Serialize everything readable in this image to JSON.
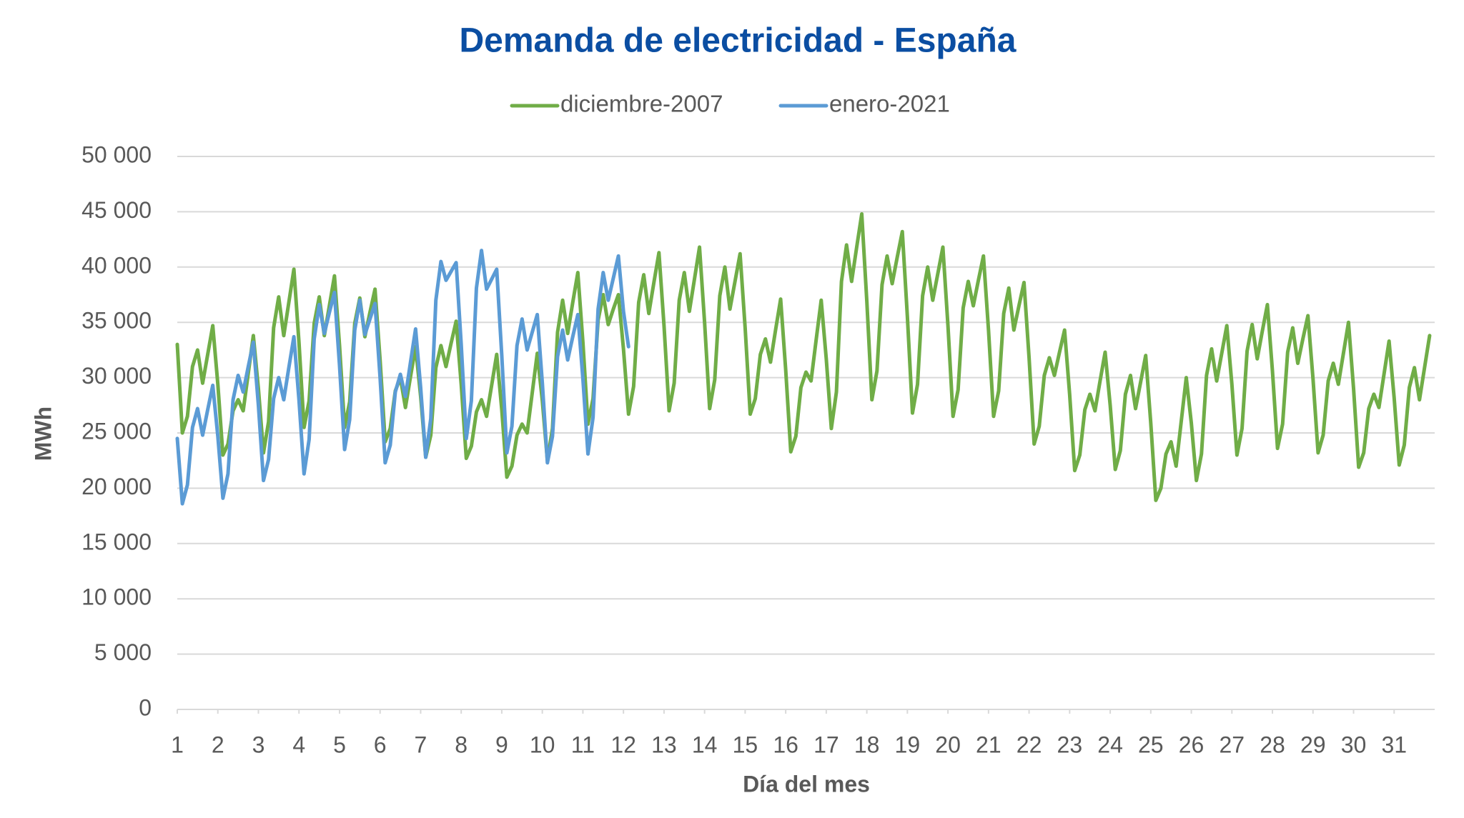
{
  "chart_data": {
    "type": "line",
    "title": "Demanda de electricidad - España",
    "x_label": "Día del mes",
    "y_label": "MWh",
    "xlim": [
      1,
      32
    ],
    "xticks": [
      1,
      2,
      3,
      4,
      5,
      6,
      7,
      8,
      9,
      10,
      11,
      12,
      13,
      14,
      15,
      16,
      17,
      18,
      19,
      20,
      21,
      22,
      23,
      24,
      25,
      26,
      27,
      28,
      29,
      30,
      31
    ],
    "ylim": [
      0,
      50000
    ],
    "yticks": [
      0,
      {
        "value": 5000,
        "label": "5 000"
      },
      {
        "value": 10000,
        "label": "10 000"
      },
      {
        "value": 15000,
        "label": "15 000"
      },
      {
        "value": 20000,
        "label": "20 000"
      },
      {
        "value": 25000,
        "label": "25 000"
      },
      {
        "value": 30000,
        "label": "30 000"
      },
      {
        "value": 35000,
        "label": "35 000"
      },
      {
        "value": 40000,
        "label": "40 000"
      },
      {
        "value": 45000,
        "label": "45 000"
      },
      {
        "value": 50000,
        "label": "50 000"
      }
    ],
    "grid": true,
    "legend": "top",
    "x": [
      1,
      1.125,
      1.25,
      1.375,
      1.5,
      1.625,
      1.75,
      1.875,
      2,
      2.125,
      2.25,
      2.375,
      2.5,
      2.625,
      2.75,
      2.875,
      3,
      3.125,
      3.25,
      3.375,
      3.5,
      3.625,
      3.75,
      3.875,
      4,
      4.125,
      4.25,
      4.375,
      4.5,
      4.625,
      4.75,
      4.875,
      5,
      5.125,
      5.25,
      5.375,
      5.5,
      5.625,
      5.75,
      5.875,
      6,
      6.125,
      6.25,
      6.375,
      6.5,
      6.625,
      6.75,
      6.875,
      7,
      7.125,
      7.25,
      7.375,
      7.5,
      7.625,
      7.75,
      7.875,
      8,
      8.125,
      8.25,
      8.375,
      8.5,
      8.625,
      8.75,
      8.875,
      9,
      9.125,
      9.25,
      9.375,
      9.5,
      9.625,
      9.75,
      9.875,
      10,
      10.125,
      10.25,
      10.375,
      10.5,
      10.625,
      10.75,
      10.875,
      11,
      11.125,
      11.25,
      11.375,
      11.5,
      11.625,
      11.75,
      11.875,
      12,
      12.125,
      12.25,
      12.375,
      12.5,
      12.625,
      12.75,
      12.875,
      13,
      13.125,
      13.25,
      13.375,
      13.5,
      13.625,
      13.75,
      13.875,
      14,
      14.125,
      14.25,
      14.375,
      14.5,
      14.625,
      14.75,
      14.875,
      15,
      15.125,
      15.25,
      15.375,
      15.5,
      15.625,
      15.75,
      15.875,
      16,
      16.125,
      16.25,
      16.375,
      16.5,
      16.625,
      16.75,
      16.875,
      17,
      17.125,
      17.25,
      17.375,
      17.5,
      17.625,
      17.75,
      17.875,
      18,
      18.125,
      18.25,
      18.375,
      18.5,
      18.625,
      18.75,
      18.875,
      19,
      19.125,
      19.25,
      19.375,
      19.5,
      19.625,
      19.75,
      19.875,
      20,
      20.125,
      20.25,
      20.375,
      20.5,
      20.625,
      20.75,
      20.875,
      21,
      21.125,
      21.25,
      21.375,
      21.5,
      21.625,
      21.75,
      21.875,
      22,
      22.125,
      22.25,
      22.375,
      22.5,
      22.625,
      22.75,
      22.875,
      23,
      23.125,
      23.25,
      23.375,
      23.5,
      23.625,
      23.75,
      23.875,
      24,
      24.125,
      24.25,
      24.375,
      24.5,
      24.625,
      24.75,
      24.875,
      25,
      25.125,
      25.25,
      25.375,
      25.5,
      25.625,
      25.75,
      25.875,
      26,
      26.125,
      26.25,
      26.375,
      26.5,
      26.625,
      26.75,
      26.875,
      27,
      27.125,
      27.25,
      27.375,
      27.5,
      27.625,
      27.75,
      27.875,
      28,
      28.125,
      28.25,
      28.375,
      28.5,
      28.625,
      28.75,
      28.875,
      29,
      29.125,
      29.25,
      29.375,
      29.5,
      29.625,
      29.75,
      29.875,
      30,
      30.125,
      30.25,
      30.375,
      30.5,
      30.625,
      30.75,
      30.875,
      31,
      31.125,
      31.25,
      31.375,
      31.5,
      31.625,
      31.75,
      31.875
    ],
    "series": [
      {
        "name": "diciembre-2007",
        "color": "#70ad47",
        "values": [
          33000,
          25000,
          26500,
          31000,
          32500,
          29500,
          32100,
          34700,
          29400,
          23000,
          24000,
          27000,
          28000,
          27000,
          30400,
          33800,
          29000,
          23200,
          26000,
          34500,
          37300,
          33800,
          36800,
          39800,
          33200,
          25500,
          27900,
          34900,
          37300,
          33800,
          36500,
          39200,
          32900,
          25500,
          27800,
          34900,
          37200,
          33700,
          35900,
          38000,
          31600,
          24200,
          25400,
          28800,
          30000,
          27300,
          30100,
          32800,
          28300,
          22800,
          24800,
          30900,
          32900,
          31000,
          33100,
          35100,
          29400,
          22700,
          23800,
          26900,
          28000,
          26500,
          29300,
          32100,
          27100,
          21000,
          22000,
          24800,
          25800,
          25000,
          28600,
          32200,
          27900,
          22500,
          25400,
          34100,
          37000,
          34000,
          36800,
          39500,
          33200,
          25800,
          28100,
          35200,
          37500,
          34800,
          36200,
          37500,
          32600,
          26700,
          29200,
          36800,
          39300,
          35800,
          38600,
          41300,
          34700,
          27000,
          29500,
          37000,
          39500,
          36000,
          38900,
          41800,
          35000,
          27200,
          29800,
          37400,
          40000,
          36200,
          38700,
          41200,
          34500,
          26700,
          28100,
          32100,
          33500,
          31400,
          34300,
          37100,
          30700,
          23300,
          24700,
          29100,
          30500,
          29700,
          33400,
          37000,
          31700,
          25400,
          28700,
          38700,
          42000,
          38700,
          41800,
          44800,
          36900,
          28000,
          30600,
          38400,
          41000,
          38500,
          40900,
          43200,
          35500,
          26800,
          29400,
          37400,
          40000,
          37000,
          39400,
          41800,
          34700,
          26500,
          28900,
          36300,
          38700,
          36500,
          38800,
          41000,
          34300,
          26500,
          28800,
          35800,
          38100,
          34300,
          36500,
          38600,
          31800,
          24000,
          25600,
          30200,
          31800,
          30200,
          32300,
          34300,
          28500,
          21600,
          23000,
          27100,
          28500,
          27000,
          29700,
          32300,
          27500,
          21700,
          23400,
          28500,
          30200,
          27200,
          29600,
          32000,
          25900,
          18900,
          20000,
          23100,
          24200,
          22000,
          26000,
          30000,
          25900,
          20700,
          23100,
          30200,
          32600,
          29700,
          32200,
          34700,
          29400,
          23000,
          25400,
          32400,
          34800,
          31700,
          34200,
          36600,
          30600,
          23600,
          25800,
          32300,
          34500,
          31300,
          33500,
          35600,
          29900,
          23200,
          24800,
          29700,
          31300,
          29400,
          32200,
          35000,
          29000,
          21900,
          23200,
          27200,
          28500,
          27300,
          30300,
          33300,
          28200,
          22100,
          23900,
          29100,
          30900,
          28000,
          30900,
          33800
        ]
      },
      {
        "name": "enero-2021",
        "color": "#5b9bd5",
        "values": [
          24500,
          18600,
          20300,
          25500,
          27200,
          24800,
          27100,
          29300,
          24700,
          19100,
          21300,
          28000,
          30200,
          28700,
          31000,
          33200,
          27500,
          20700,
          22600,
          28100,
          30000,
          28000,
          30900,
          33700,
          28000,
          21300,
          24400,
          33500,
          36600,
          34000,
          35900,
          37700,
          31100,
          23500,
          26200,
          34300,
          37000,
          33900,
          35300,
          36700,
          30000,
          22300,
          23900,
          28700,
          30300,
          28300,
          31400,
          34400,
          29100,
          22800,
          26300,
          37000,
          40500,
          38800,
          39600,
          40400,
          33000,
          24500,
          27900,
          38100,
          41500,
          38000,
          38900,
          39800,
          32000,
          23200,
          25600,
          32900,
          35300,
          32500,
          34100,
          35700,
          29500,
          22300,
          24700,
          31900,
          34300,
          31600,
          33700,
          35700,
          29900,
          23100,
          26400,
          36200,
          39500,
          37000,
          39000,
          41000,
          36000,
          32800,
          null,
          null,
          null,
          null,
          null,
          null,
          null,
          null,
          null,
          null,
          null,
          null,
          null,
          null,
          null,
          null,
          null,
          null,
          null,
          null,
          null,
          null,
          null,
          null,
          null,
          null,
          null,
          null,
          null,
          null,
          null,
          null,
          null,
          null,
          null,
          null,
          null,
          null,
          null,
          null,
          null,
          null,
          null,
          null,
          null,
          null,
          null,
          null,
          null,
          null,
          null,
          null,
          null,
          null,
          null,
          null,
          null,
          null,
          null,
          null,
          null,
          null,
          null,
          null,
          null,
          null,
          null,
          null,
          null,
          null,
          null,
          null,
          null,
          null,
          null,
          null,
          null,
          null,
          null,
          null,
          null,
          null,
          null,
          null,
          null,
          null,
          null,
          null,
          null,
          null,
          null,
          null,
          null,
          null,
          null,
          null,
          null,
          null,
          null,
          null,
          null,
          null,
          null,
          null,
          null,
          null,
          null,
          null,
          null,
          null,
          null,
          null,
          null,
          null,
          null,
          null,
          null,
          null,
          null,
          null,
          null,
          null,
          null,
          null,
          null,
          null,
          null,
          null,
          null,
          null,
          null,
          null,
          null,
          null,
          null,
          null,
          null,
          null,
          null,
          null,
          null,
          null,
          null,
          null,
          null,
          null,
          null,
          null,
          null,
          null,
          null,
          null,
          null,
          null,
          null,
          null,
          null,
          null
        ]
      }
    ]
  }
}
